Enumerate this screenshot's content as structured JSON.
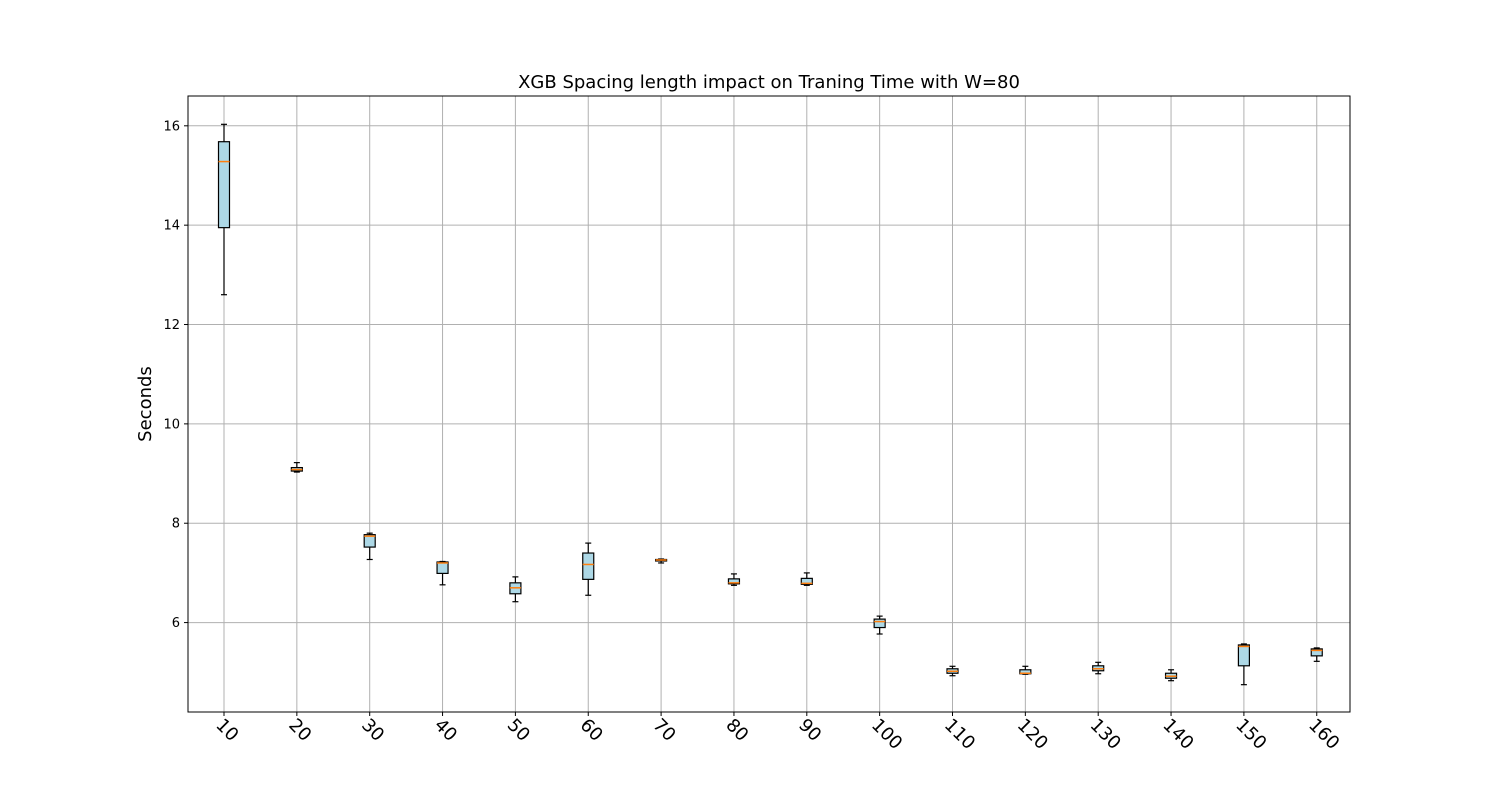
{
  "chart_data": {
    "type": "box",
    "title": "XGB Spacing length impact on Traning Time with W=80",
    "xlabel": "",
    "ylabel": "Seconds",
    "grid": true,
    "ylim": [
      4.2,
      16.6
    ],
    "yticks": [
      6,
      8,
      10,
      12,
      14,
      16
    ],
    "categories": [
      "10",
      "20",
      "30",
      "40",
      "50",
      "60",
      "70",
      "80",
      "90",
      "100",
      "110",
      "120",
      "130",
      "140",
      "150",
      "160"
    ],
    "box_color": "#add8e6",
    "median_color": "#ff7f0e",
    "boxes": [
      {
        "whislo": 12.6,
        "q1": 13.95,
        "med": 15.28,
        "q3": 15.68,
        "whishi": 16.03
      },
      {
        "whislo": 9.03,
        "q1": 9.05,
        "med": 9.08,
        "q3": 9.12,
        "whishi": 9.22
      },
      {
        "whislo": 7.27,
        "q1": 7.52,
        "med": 7.74,
        "q3": 7.77,
        "whishi": 7.8
      },
      {
        "whislo": 6.76,
        "q1": 6.99,
        "med": 7.2,
        "q3": 7.22,
        "whishi": 7.23
      },
      {
        "whislo": 6.42,
        "q1": 6.58,
        "med": 6.7,
        "q3": 6.8,
        "whishi": 6.92
      },
      {
        "whislo": 6.55,
        "q1": 6.87,
        "med": 7.17,
        "q3": 7.4,
        "whishi": 7.6
      },
      {
        "whislo": 7.2,
        "q1": 7.24,
        "med": 7.26,
        "q3": 7.27,
        "whishi": 7.28
      },
      {
        "whislo": 6.75,
        "q1": 6.78,
        "med": 6.8,
        "q3": 6.88,
        "whishi": 6.98
      },
      {
        "whislo": 6.75,
        "q1": 6.77,
        "med": 6.79,
        "q3": 6.89,
        "whishi": 7.0
      },
      {
        "whislo": 5.77,
        "q1": 5.9,
        "med": 6.02,
        "q3": 6.07,
        "whishi": 6.13
      },
      {
        "whislo": 4.93,
        "q1": 4.98,
        "med": 5.02,
        "q3": 5.07,
        "whishi": 5.12
      },
      {
        "whislo": 4.96,
        "q1": 4.97,
        "med": 4.98,
        "q3": 5.05,
        "whishi": 5.12
      },
      {
        "whislo": 4.97,
        "q1": 5.03,
        "med": 5.07,
        "q3": 5.13,
        "whishi": 5.2
      },
      {
        "whislo": 4.83,
        "q1": 4.88,
        "med": 4.92,
        "q3": 4.98,
        "whishi": 5.05
      },
      {
        "whislo": 4.75,
        "q1": 5.13,
        "med": 5.52,
        "q3": 5.55,
        "whishi": 5.57
      },
      {
        "whislo": 5.22,
        "q1": 5.33,
        "med": 5.44,
        "q3": 5.47,
        "whishi": 5.49
      }
    ]
  }
}
